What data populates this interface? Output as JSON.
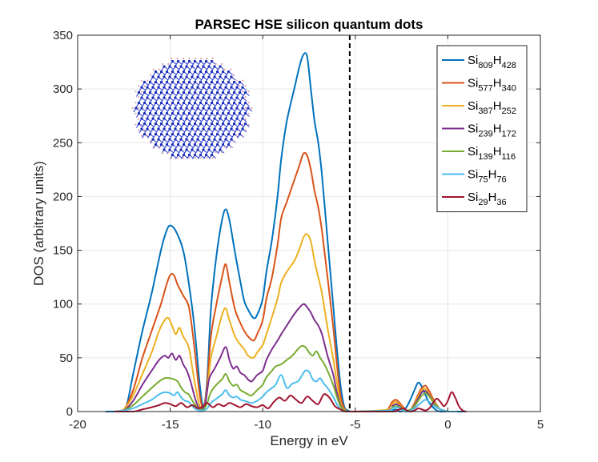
{
  "chart_data": {
    "type": "line",
    "title": "PARSEC HSE silicon quantum dots",
    "xlabel": "Energy in eV",
    "ylabel": "DOS (arbitrary units)",
    "xlim": [
      -20,
      5
    ],
    "ylim": [
      0,
      350
    ],
    "xticks": [
      -20,
      -15,
      -10,
      -5,
      0,
      5
    ],
    "yticks": [
      0,
      50,
      100,
      150,
      200,
      250,
      300,
      350
    ],
    "xtick_labels": [
      "-20",
      "-15",
      "-10",
      "-5",
      "0",
      "5"
    ],
    "ytick_labels": [
      "0",
      "50",
      "100",
      "150",
      "200",
      "250",
      "300",
      "350"
    ],
    "grid": true,
    "legend_position": "top-right",
    "fermi_line_x": -5.3,
    "series": [
      {
        "name": "Si809H428",
        "si": "809",
        "h": "428",
        "color": "#0072BD",
        "x": [
          -18.5,
          -17.8,
          -17.4,
          -17.0,
          -16.5,
          -16.0,
          -15.5,
          -15.2,
          -15.0,
          -14.7,
          -14.3,
          -14.0,
          -13.7,
          -13.4,
          -13.2,
          -13.0,
          -12.8,
          -12.5,
          -12.2,
          -12.0,
          -11.8,
          -11.5,
          -11.2,
          -11.0,
          -10.8,
          -10.5,
          -10.3,
          -10.0,
          -9.8,
          -9.5,
          -9.2,
          -9.0,
          -8.7,
          -8.3,
          -8.0,
          -7.8,
          -7.6,
          -7.4,
          -7.2,
          -7.0,
          -6.8,
          -6.5,
          -6.2,
          -6.0,
          -5.8,
          -5.6,
          -5.4,
          -5.2,
          -5.0,
          -4.6,
          -3.2,
          -3.0,
          -2.8,
          -2.6,
          -2.4,
          -2.2,
          -2.0,
          -1.8,
          -1.6,
          -1.4,
          -1.2,
          -1.0,
          -0.8,
          -0.6,
          -0.4,
          -0.2,
          0.0,
          0.4,
          1.0
        ],
        "y": [
          0,
          0,
          3,
          35,
          75,
          110,
          150,
          168,
          173,
          168,
          150,
          120,
          80,
          25,
          5,
          30,
          95,
          145,
          178,
          188,
          178,
          148,
          120,
          103,
          95,
          87,
          90,
          105,
          130,
          160,
          200,
          235,
          270,
          300,
          322,
          332,
          330,
          300,
          270,
          250,
          220,
          160,
          100,
          60,
          25,
          5,
          1,
          0,
          0,
          0,
          0,
          1,
          2,
          0,
          1,
          5,
          12,
          20,
          27,
          23,
          15,
          8,
          4,
          1,
          0,
          0,
          0,
          0,
          0
        ]
      },
      {
        "name": "Si577H340",
        "si": "577",
        "h": "340",
        "color": "#D95319",
        "x": [
          -18.0,
          -17.5,
          -17.0,
          -16.5,
          -16.0,
          -15.5,
          -15.2,
          -15.0,
          -14.8,
          -14.6,
          -14.3,
          -14.0,
          -13.8,
          -13.6,
          -13.4,
          -13.2,
          -13.0,
          -12.8,
          -12.5,
          -12.2,
          -12.0,
          -11.8,
          -11.5,
          -11.2,
          -11.0,
          -10.8,
          -10.5,
          -10.3,
          -10.0,
          -9.8,
          -9.5,
          -9.2,
          -9.0,
          -8.7,
          -8.3,
          -8.0,
          -7.8,
          -7.6,
          -7.4,
          -7.2,
          -7.0,
          -6.8,
          -6.5,
          -6.2,
          -6.0,
          -5.8,
          -5.6,
          -5.4,
          -5.0,
          -3.4,
          -3.2,
          -3.0,
          -2.8,
          -2.6,
          -2.4,
          -2.2,
          -2.0,
          -1.8,
          -1.6,
          -1.4,
          -1.2,
          -1.0,
          -0.8,
          -0.6,
          -0.4,
          -0.2,
          0.0,
          0.5
        ],
        "y": [
          0,
          2,
          20,
          50,
          75,
          100,
          118,
          127,
          127,
          118,
          108,
          98,
          75,
          45,
          15,
          3,
          25,
          70,
          100,
          125,
          137,
          120,
          95,
          82,
          75,
          70,
          66,
          72,
          85,
          105,
          125,
          155,
          180,
          195,
          215,
          230,
          240,
          238,
          225,
          205,
          190,
          168,
          125,
          80,
          45,
          15,
          3,
          0,
          0,
          0,
          3,
          9,
          11,
          8,
          4,
          1,
          2,
          8,
          16,
          22,
          24,
          19,
          12,
          6,
          2,
          1,
          0,
          0
        ]
      },
      {
        "name": "Si387H252",
        "si": "387",
        "h": "252",
        "color": "#EDB120",
        "x": [
          -18.0,
          -17.5,
          -17.0,
          -16.5,
          -16.0,
          -15.6,
          -15.3,
          -15.1,
          -14.9,
          -14.7,
          -14.5,
          -14.3,
          -14.0,
          -13.8,
          -13.6,
          -13.4,
          -13.2,
          -13.0,
          -12.8,
          -12.5,
          -12.2,
          -12.0,
          -11.8,
          -11.5,
          -11.2,
          -11.0,
          -10.8,
          -10.5,
          -10.3,
          -10.0,
          -9.8,
          -9.5,
          -9.2,
          -9.0,
          -8.7,
          -8.3,
          -8.0,
          -7.8,
          -7.6,
          -7.4,
          -7.2,
          -7.0,
          -6.8,
          -6.5,
          -6.2,
          -6.0,
          -5.8,
          -5.6,
          -5.4,
          -5.0,
          -3.2,
          -3.0,
          -2.8,
          -2.6,
          -2.4,
          -2.2,
          -2.0,
          -1.8,
          -1.6,
          -1.4,
          -1.2,
          -1.0,
          -0.8,
          -0.6,
          -0.4,
          -0.2,
          0.0,
          0.5
        ],
        "y": [
          0,
          2,
          15,
          35,
          55,
          75,
          85,
          87,
          80,
          72,
          78,
          70,
          60,
          40,
          20,
          5,
          2,
          20,
          50,
          70,
          90,
          96,
          85,
          70,
          62,
          58,
          52,
          50,
          55,
          62,
          72,
          88,
          105,
          120,
          130,
          140,
          152,
          162,
          165,
          158,
          140,
          125,
          110,
          78,
          50,
          28,
          8,
          2,
          0,
          0,
          2,
          7,
          9,
          6,
          3,
          1,
          2,
          7,
          14,
          20,
          21,
          16,
          10,
          5,
          2,
          1,
          0,
          0
        ]
      },
      {
        "name": "Si239H172",
        "si": "239",
        "h": "172",
        "color": "#7E2F8E",
        "x": [
          -18.0,
          -17.5,
          -17.0,
          -16.5,
          -16.0,
          -15.6,
          -15.3,
          -15.1,
          -14.9,
          -14.7,
          -14.5,
          -14.3,
          -14.1,
          -13.9,
          -13.7,
          -13.5,
          -13.3,
          -13.1,
          -12.9,
          -12.6,
          -12.3,
          -12.0,
          -11.8,
          -11.6,
          -11.4,
          -11.2,
          -11.0,
          -10.8,
          -10.6,
          -10.3,
          -10.0,
          -9.8,
          -9.5,
          -9.2,
          -9.0,
          -8.7,
          -8.4,
          -8.1,
          -7.8,
          -7.6,
          -7.4,
          -7.2,
          -7.0,
          -6.8,
          -6.5,
          -6.2,
          -6.0,
          -5.8,
          -5.6,
          -5.4,
          -5.0,
          -3.2,
          -3.0,
          -2.8,
          -2.6,
          -2.4,
          -2.2,
          -2.0,
          -1.8,
          -1.6,
          -1.4,
          -1.2,
          -1.0,
          -0.8,
          -0.6,
          -0.4,
          -0.2,
          0.0,
          0.5
        ],
        "y": [
          0,
          1,
          10,
          25,
          38,
          48,
          52,
          50,
          54,
          48,
          52,
          44,
          38,
          28,
          15,
          5,
          2,
          8,
          30,
          40,
          50,
          60,
          48,
          40,
          42,
          36,
          34,
          30,
          28,
          34,
          38,
          48,
          58,
          66,
          72,
          80,
          88,
          95,
          100,
          97,
          92,
          85,
          80,
          72,
          52,
          35,
          18,
          6,
          1,
          0,
          0,
          1,
          5,
          7,
          5,
          2,
          1,
          2,
          6,
          12,
          18,
          19,
          15,
          9,
          4,
          2,
          1,
          0,
          0
        ]
      },
      {
        "name": "Si139H116",
        "si": "139",
        "h": "116",
        "color": "#77AC30",
        "x": [
          -18.0,
          -17.5,
          -17.0,
          -16.5,
          -16.0,
          -15.6,
          -15.3,
          -15.0,
          -14.8,
          -14.6,
          -14.4,
          -14.2,
          -14.0,
          -13.8,
          -13.6,
          -13.4,
          -13.2,
          -13.0,
          -12.8,
          -12.5,
          -12.2,
          -12.0,
          -11.8,
          -11.6,
          -11.4,
          -11.2,
          -11.0,
          -10.8,
          -10.6,
          -10.3,
          -10.0,
          -9.8,
          -9.5,
          -9.3,
          -9.0,
          -8.7,
          -8.4,
          -8.1,
          -7.9,
          -7.7,
          -7.5,
          -7.3,
          -7.1,
          -6.9,
          -6.7,
          -6.5,
          -6.2,
          -6.0,
          -5.8,
          -5.6,
          -5.4,
          -5.0,
          -3.2,
          -3.0,
          -2.8,
          -2.6,
          -2.4,
          -2.2,
          -2.0,
          -1.8,
          -1.6,
          -1.4,
          -1.2,
          -1.0,
          -0.8,
          -0.6,
          -0.4,
          -0.2,
          0.0,
          0.5
        ],
        "y": [
          0,
          1,
          6,
          14,
          22,
          28,
          31,
          31,
          30,
          28,
          22,
          18,
          16,
          10,
          5,
          2,
          2,
          8,
          18,
          25,
          30,
          35,
          28,
          24,
          25,
          20,
          18,
          16,
          15,
          20,
          25,
          32,
          38,
          42,
          44,
          48,
          52,
          58,
          61,
          60,
          55,
          52,
          56,
          50,
          45,
          38,
          25,
          14,
          5,
          1,
          0,
          0,
          1,
          4,
          5,
          4,
          2,
          1,
          2,
          5,
          10,
          15,
          17,
          14,
          9,
          5,
          2,
          1,
          0,
          0
        ]
      },
      {
        "name": "Si75H76",
        "si": "75",
        "h": "76",
        "color": "#4DBEEE",
        "x": [
          -18.0,
          -17.5,
          -17.0,
          -16.5,
          -16.0,
          -15.6,
          -15.3,
          -15.0,
          -14.8,
          -14.6,
          -14.4,
          -14.2,
          -14.0,
          -13.8,
          -13.6,
          -13.4,
          -13.2,
          -13.0,
          -12.8,
          -12.5,
          -12.2,
          -12.0,
          -11.8,
          -11.6,
          -11.4,
          -11.2,
          -11.0,
          -10.8,
          -10.6,
          -10.3,
          -10.0,
          -9.8,
          -9.5,
          -9.3,
          -9.0,
          -8.7,
          -8.4,
          -8.1,
          -7.9,
          -7.7,
          -7.5,
          -7.3,
          -7.1,
          -6.9,
          -6.7,
          -6.5,
          -6.2,
          -6.0,
          -5.8,
          -5.6,
          -5.4,
          -5.0,
          -3.2,
          -3.0,
          -2.8,
          -2.6,
          -2.4,
          -2.2,
          -2.0,
          -1.8,
          -1.6,
          -1.4,
          -1.2,
          -1.0,
          -0.8,
          -0.6,
          -0.4,
          -0.2,
          0.0,
          0.5
        ],
        "y": [
          0,
          1,
          3,
          7,
          11,
          16,
          18,
          17,
          15,
          18,
          13,
          10,
          9,
          5,
          2,
          1,
          1,
          3,
          8,
          12,
          16,
          20,
          15,
          13,
          14,
          11,
          10,
          9,
          8,
          10,
          14,
          18,
          22,
          25,
          34,
          22,
          26,
          28,
          33,
          38,
          37,
          30,
          28,
          31,
          26,
          22,
          14,
          7,
          2,
          0,
          0,
          0,
          1,
          3,
          4,
          3,
          1,
          0,
          1,
          3,
          6,
          9,
          11,
          9,
          6,
          4,
          2,
          1,
          0,
          0
        ]
      },
      {
        "name": "Si29H36",
        "si": "29",
        "h": "36",
        "color": "#A2142F",
        "x": [
          -18.0,
          -17.0,
          -16.5,
          -16.0,
          -15.6,
          -15.3,
          -15.0,
          -14.7,
          -14.4,
          -14.1,
          -13.8,
          -13.5,
          -13.2,
          -13.0,
          -12.7,
          -12.4,
          -12.1,
          -11.8,
          -11.5,
          -11.2,
          -10.9,
          -10.6,
          -10.3,
          -10.0,
          -9.7,
          -9.4,
          -9.1,
          -8.8,
          -8.5,
          -8.2,
          -7.9,
          -7.6,
          -7.3,
          -7.0,
          -6.7,
          -6.4,
          -6.1,
          -5.8,
          -5.5,
          -5.0,
          -3.0,
          -2.8,
          -2.6,
          -2.4,
          -2.2,
          -2.0,
          -1.8,
          -1.6,
          -1.4,
          -1.2,
          -1.0,
          -0.8,
          -0.6,
          -0.4,
          -0.2,
          0.0,
          0.2,
          0.4,
          0.6,
          0.8,
          1.0
        ],
        "y": [
          0,
          0,
          2,
          4,
          6,
          8,
          7,
          5,
          8,
          4,
          6,
          3,
          5,
          8,
          4,
          7,
          5,
          8,
          6,
          4,
          7,
          5,
          4,
          6,
          3,
          9,
          13,
          10,
          15,
          11,
          8,
          14,
          10,
          7,
          16,
          13,
          5,
          2,
          0,
          0,
          0,
          1,
          2,
          3,
          1,
          0,
          1,
          3,
          2,
          1,
          3,
          8,
          12,
          9,
          5,
          10,
          18,
          13,
          5,
          1,
          0
        ]
      }
    ]
  }
}
